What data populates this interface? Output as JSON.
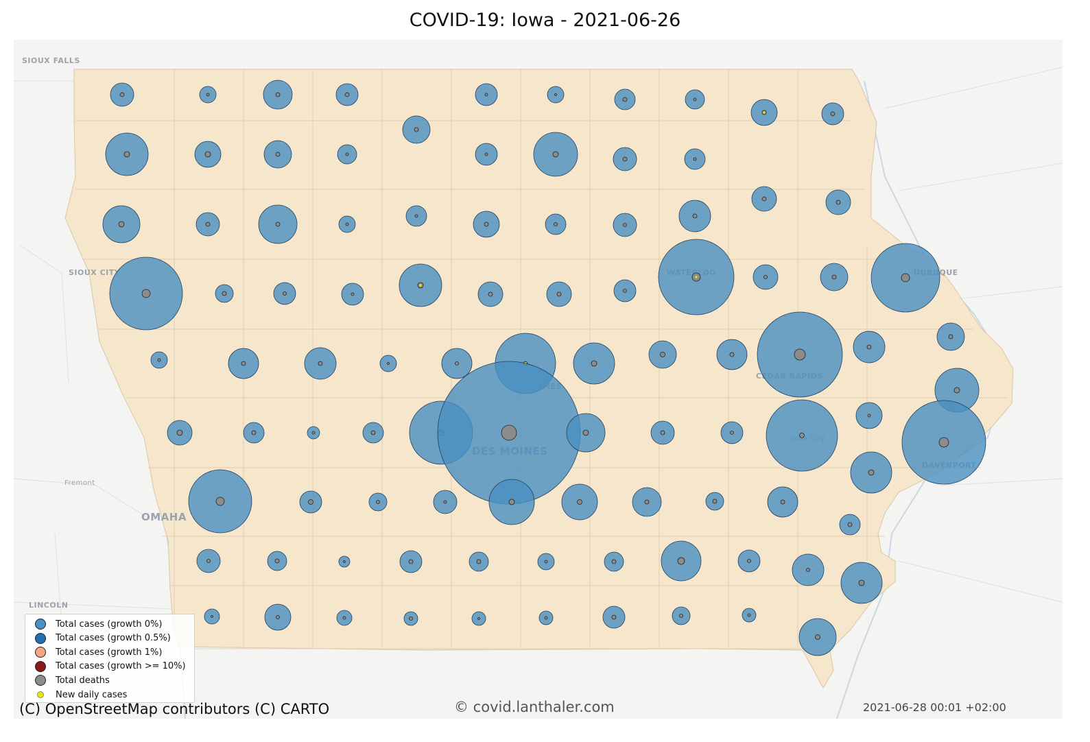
{
  "title": "COVID-19: Iowa - 2021-06-26",
  "attribution": "(C) OpenStreetMap contributors (C) CARTO",
  "watermark": "© covid.lanthaler.com",
  "timestamp": "2021-06-28 00:01 +02:00",
  "colors": {
    "growth_0": "#4a90c2",
    "growth_0_5": "#1f6fb4",
    "growth_1": "#f4a582",
    "growth_10": "#8b1a1a",
    "deaths": "#8c8c8c",
    "new_cases": "#e8e800",
    "state_fill": "#f5e6cc",
    "water": "#c9d8e4"
  },
  "legend": [
    {
      "label": "Total cases (growth 0%)",
      "color": "#4a90c2",
      "kind": "cases"
    },
    {
      "label": "Total cases (growth 0.5%)",
      "color": "#1f6fb4",
      "kind": "cases"
    },
    {
      "label": "Total cases (growth 1%)",
      "color": "#f4a582",
      "kind": "cases"
    },
    {
      "label": "Total cases (growth >= 10%)",
      "color": "#8b1a1a",
      "kind": "cases"
    },
    {
      "label": "Total deaths",
      "color": "#8c8c8c",
      "kind": "deaths"
    },
    {
      "label": "New daily cases",
      "color": "#e8e800",
      "kind": "new"
    }
  ],
  "cities": [
    {
      "name": "SIOUX FALLS"
    },
    {
      "name": "SIOUX CITY"
    },
    {
      "name": "Fremont"
    },
    {
      "name": "OMAHA"
    },
    {
      "name": "LINCOLN"
    },
    {
      "name": "WATERLOO"
    },
    {
      "name": "DUBUQUE"
    },
    {
      "name": "CEDAR RAPIDS"
    },
    {
      "name": "Iowa City"
    },
    {
      "name": "DAVENPORT"
    },
    {
      "name": "DES MOINES"
    },
    {
      "name": "AMES"
    }
  ]
}
